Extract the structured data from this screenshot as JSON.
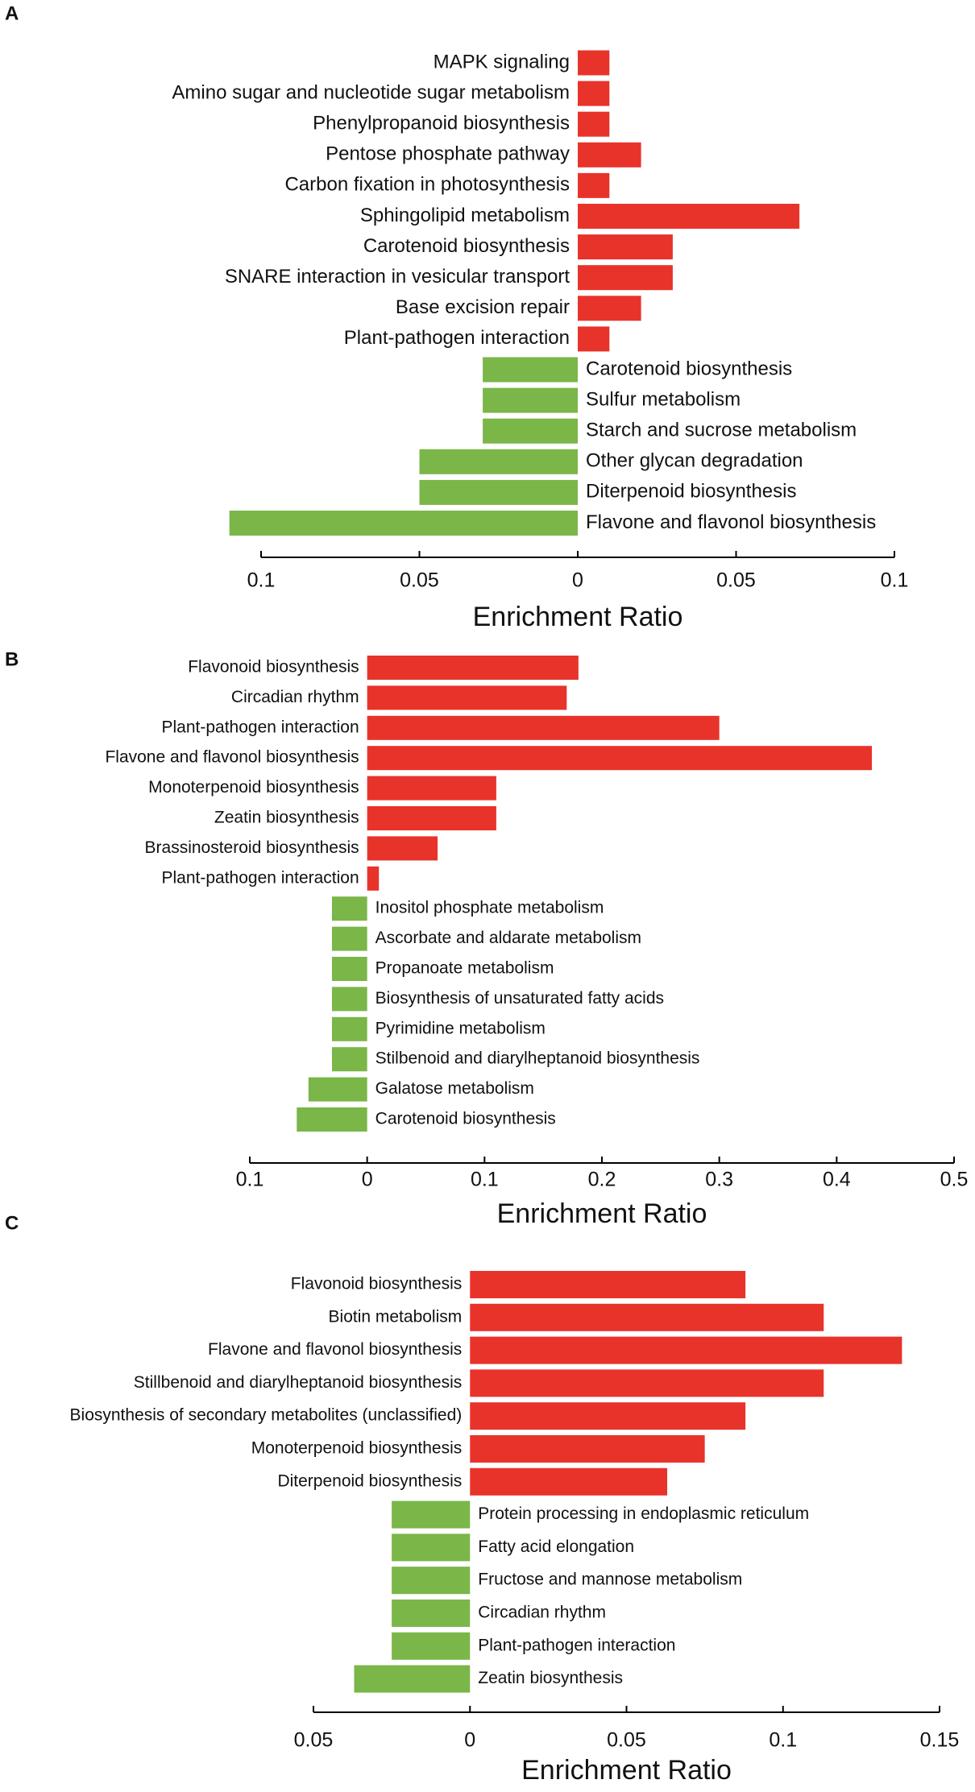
{
  "chart_data": [
    {
      "type": "bar",
      "panel": "A",
      "xlabel": "Enrichment Ratio",
      "categories": [
        "MAPK signaling",
        "Amino sugar and nucleotide sugar metabolism",
        "Phenylpropanoid biosynthesis",
        "Pentose phosphate pathway",
        "Carbon fixation in photosynthesis",
        "Sphingolipid metabolism",
        "Carotenoid biosynthesis",
        "SNARE interaction in vesicular transport",
        "Base excision repair",
        "Plant-pathogen interaction",
        "Carotenoid biosynthesis",
        "Sulfur metabolism",
        "Starch and sucrose metabolism",
        "Other glycan degradation",
        "Diterpenoid biosynthesis",
        "Flavone and flavonol biosynthesis"
      ],
      "values": [
        0.01,
        0.01,
        0.01,
        0.02,
        0.01,
        0.07,
        0.03,
        0.03,
        0.02,
        0.01,
        -0.03,
        -0.03,
        -0.03,
        -0.05,
        -0.05,
        -0.11
      ],
      "pos_color": "#e8332b",
      "neg_color": "#7ab648",
      "xlim": [
        -0.1,
        0.1
      ],
      "xticks": [
        {
          "value": -0.1,
          "label": "0.1"
        },
        {
          "value": -0.05,
          "label": "0.05"
        },
        0,
        0.05,
        0.1
      ]
    },
    {
      "type": "bar",
      "panel": "B",
      "xlabel": "Enrichment Ratio",
      "categories": [
        "Flavonoid biosynthesis",
        "Circadian rhythm",
        "Plant-pathogen interaction",
        "Flavone and flavonol biosynthesis",
        "Monoterpenoid biosynthesis",
        "Zeatin biosynthesis",
        "Brassinosteroid biosynthesis",
        "Plant-pathogen interaction",
        "Inositol phosphate metabolism",
        "Ascorbate and aldarate metabolism",
        "Propanoate metabolism",
        "Biosynthesis of unsaturated fatty acids",
        "Pyrimidine metabolism",
        "Stilbenoid and diarylheptanoid biosynthesis",
        "Galatose metabolism",
        "Carotenoid biosynthesis"
      ],
      "values": [
        0.18,
        0.17,
        0.3,
        0.43,
        0.11,
        0.11,
        0.06,
        0.01,
        -0.03,
        -0.03,
        -0.03,
        -0.03,
        -0.03,
        -0.03,
        -0.05,
        -0.06
      ],
      "pos_color": "#e8332b",
      "neg_color": "#7ab648",
      "xlim": [
        -0.1,
        0.5
      ],
      "xticks": [
        {
          "value": -0.1,
          "label": "0.1"
        },
        0,
        0.1,
        0.2,
        0.3,
        0.4,
        0.5
      ]
    },
    {
      "type": "bar",
      "panel": "C",
      "xlabel": "Enrichment Ratio",
      "categories": [
        "Flavonoid biosynthesis",
        "Biotin metabolism",
        "Flavone and flavonol biosynthesis",
        "Stillbenoid and diarylheptanoid biosynthesis",
        "Biosynthesis of secondary metabolites (unclassified)",
        "Monoterpenoid biosynthesis",
        "Diterpenoid biosynthesis",
        "Protein processing in endoplasmic reticulum",
        "Fatty acid elongation",
        "Fructose and mannose metabolism",
        "Circadian rhythm",
        "Plant-pathogen interaction",
        "Zeatin biosynthesis"
      ],
      "values": [
        0.088,
        0.113,
        0.138,
        0.113,
        0.088,
        0.075,
        0.063,
        -0.025,
        -0.025,
        -0.025,
        -0.025,
        -0.025,
        -0.037
      ],
      "pos_color": "#e8332b",
      "neg_color": "#7ab648",
      "xlim": [
        -0.05,
        0.15
      ],
      "xticks": [
        {
          "value": -0.05,
          "label": "0.05"
        },
        0,
        0.05,
        0.1,
        0.15
      ]
    }
  ]
}
